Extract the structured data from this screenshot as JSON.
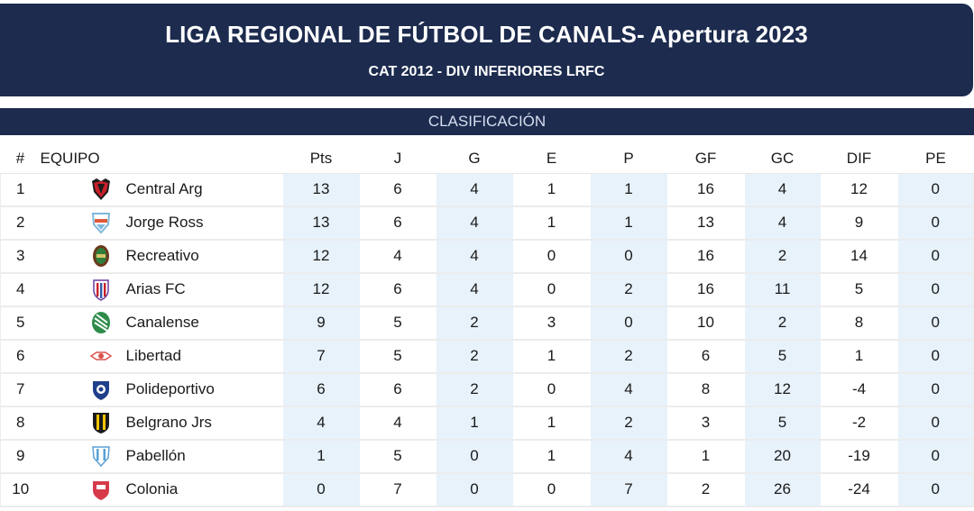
{
  "header": {
    "title": "LIGA REGIONAL DE FÚTBOL DE CANALS- Apertura 2023",
    "subtitle": "CAT 2012 - DIV INFERIORES LRFC"
  },
  "section": {
    "title": "CLASIFICACIÓN"
  },
  "columns": [
    "#",
    "EQUIPO",
    "Pts",
    "J",
    "G",
    "E",
    "P",
    "GF",
    "GC",
    "DIF",
    "PE"
  ],
  "rows": [
    {
      "pos": "1",
      "team": "Central Arg",
      "crest": "central-arg-crest",
      "pts": "13",
      "j": "6",
      "g": "4",
      "e": "1",
      "p": "1",
      "gf": "16",
      "gc": "4",
      "dif": "12",
      "pe": "0"
    },
    {
      "pos": "2",
      "team": "Jorge Ross",
      "crest": "jorge-ross-crest",
      "pts": "13",
      "j": "6",
      "g": "4",
      "e": "1",
      "p": "1",
      "gf": "13",
      "gc": "4",
      "dif": "9",
      "pe": "0"
    },
    {
      "pos": "3",
      "team": "Recreativo",
      "crest": "recreativo-crest",
      "pts": "12",
      "j": "4",
      "g": "4",
      "e": "0",
      "p": "0",
      "gf": "16",
      "gc": "2",
      "dif": "14",
      "pe": "0"
    },
    {
      "pos": "4",
      "team": "Arias FC",
      "crest": "arias-fc-crest",
      "pts": "12",
      "j": "6",
      "g": "4",
      "e": "0",
      "p": "2",
      "gf": "16",
      "gc": "11",
      "dif": "5",
      "pe": "0"
    },
    {
      "pos": "5",
      "team": "Canalense",
      "crest": "canalense-crest",
      "pts": "9",
      "j": "5",
      "g": "2",
      "e": "3",
      "p": "0",
      "gf": "10",
      "gc": "2",
      "dif": "8",
      "pe": "0"
    },
    {
      "pos": "6",
      "team": "Libertad",
      "crest": "libertad-crest",
      "pts": "7",
      "j": "5",
      "g": "2",
      "e": "1",
      "p": "2",
      "gf": "6",
      "gc": "5",
      "dif": "1",
      "pe": "0"
    },
    {
      "pos": "7",
      "team": "Polideportivo",
      "crest": "polideportivo-crest",
      "pts": "6",
      "j": "6",
      "g": "2",
      "e": "0",
      "p": "4",
      "gf": "8",
      "gc": "12",
      "dif": "-4",
      "pe": "0"
    },
    {
      "pos": "8",
      "team": "Belgrano Jrs",
      "crest": "belgrano-jrs-crest",
      "pts": "4",
      "j": "4",
      "g": "1",
      "e": "1",
      "p": "2",
      "gf": "3",
      "gc": "5",
      "dif": "-2",
      "pe": "0"
    },
    {
      "pos": "9",
      "team": "Pabellón",
      "crest": "pabellon-crest",
      "pts": "1",
      "j": "5",
      "g": "0",
      "e": "1",
      "p": "4",
      "gf": "1",
      "gc": "20",
      "dif": "-19",
      "pe": "0"
    },
    {
      "pos": "10",
      "team": "Colonia",
      "crest": "colonia-crest",
      "pts": "0",
      "j": "7",
      "g": "0",
      "e": "0",
      "p": "7",
      "gf": "2",
      "gc": "26",
      "dif": "-24",
      "pe": "0"
    }
  ],
  "colors": {
    "header_bg": "#1c2b4e",
    "shade": "#e7f2fb"
  }
}
